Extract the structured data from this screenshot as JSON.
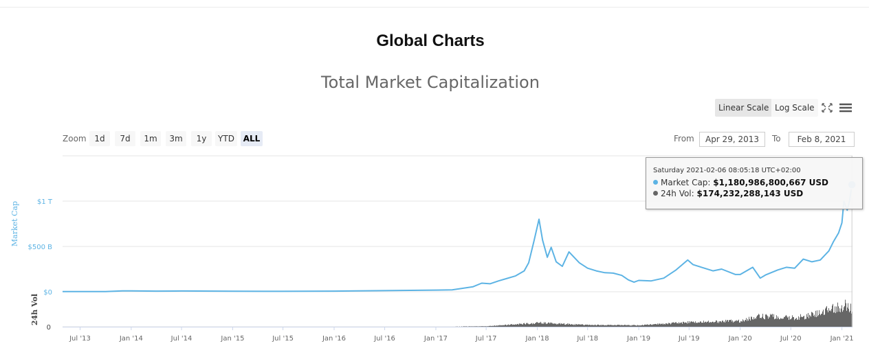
{
  "page": {
    "title": "Global Charts"
  },
  "toolbar": {
    "linear_label": "Linear Scale",
    "log_label": "Log Scale",
    "zoom_label": "Zoom",
    "zoom_options": [
      "1d",
      "7d",
      "1m",
      "3m",
      "1y",
      "YTD",
      "ALL"
    ],
    "zoom_active": "ALL",
    "from_label": "From",
    "from_value": "Apr 29, 2013",
    "to_label": "To",
    "to_value": "Feb 8, 2021"
  },
  "tooltip": {
    "date": "Saturday 2021-02-06 08:05:18 UTC+02:00",
    "market_cap_label": "Market Cap:",
    "market_cap_value": "$1,180,986,800,667 USD",
    "volume_label": "24h Vol:",
    "volume_value": "$174,232,288,143 USD"
  },
  "colors": {
    "market_cap": "#5cb3e4",
    "volume": "#666666"
  },
  "chart_data": {
    "type": "area",
    "title": "Total Market Capitalization",
    "ylabel": "Market Cap",
    "y2label": "24h Vol",
    "ytick_labels": [
      "$0",
      "$500 B",
      "$1 T"
    ],
    "y2tick_labels": [
      "0"
    ],
    "ylim": [
      0,
      1300
    ],
    "y_unit": "billion USD",
    "xtick_labels": [
      "Jul '13",
      "Jan '14",
      "Jul '14",
      "Jan '15",
      "Jul '15",
      "Jan '16",
      "Jul '16",
      "Jan '17",
      "Jul '17",
      "Jan '18",
      "Jul '18",
      "Jan '19",
      "Jul '19",
      "Jan '20",
      "Jul '20",
      "Jan '21"
    ],
    "grid": true,
    "series": [
      {
        "name": "Market Cap",
        "x": [
          "2013-04-29",
          "2013-07-01",
          "2013-10-01",
          "2013-12-01",
          "2014-01-01",
          "2014-04-01",
          "2014-07-01",
          "2015-01-01",
          "2015-07-01",
          "2016-01-01",
          "2016-07-01",
          "2017-01-01",
          "2017-03-01",
          "2017-05-15",
          "2017-06-15",
          "2017-07-15",
          "2017-08-15",
          "2017-09-15",
          "2017-10-15",
          "2017-11-15",
          "2017-12-01",
          "2017-12-20",
          "2018-01-07",
          "2018-01-20",
          "2018-02-06",
          "2018-02-20",
          "2018-03-10",
          "2018-04-01",
          "2018-04-25",
          "2018-06-01",
          "2018-07-01",
          "2018-08-01",
          "2018-09-01",
          "2018-10-01",
          "2018-11-01",
          "2018-11-25",
          "2018-12-15",
          "2019-01-01",
          "2019-02-15",
          "2019-04-01",
          "2019-05-15",
          "2019-06-26",
          "2019-07-15",
          "2019-08-15",
          "2019-09-25",
          "2019-10-26",
          "2019-12-15",
          "2020-01-01",
          "2020-02-15",
          "2020-03-13",
          "2020-04-01",
          "2020-05-15",
          "2020-06-15",
          "2020-07-15",
          "2020-08-15",
          "2020-09-15",
          "2020-10-15",
          "2020-11-15",
          "2020-12-01",
          "2020-12-20",
          "2021-01-01",
          "2021-01-08",
          "2021-01-20",
          "2021-01-28",
          "2021-02-06"
        ],
        "values": [
          1.5,
          1.2,
          1.8,
          10,
          10,
          7,
          8,
          5,
          4.5,
          7,
          12,
          18,
          21,
          55,
          95,
          88,
          120,
          148,
          175,
          230,
          320,
          560,
          800,
          570,
          380,
          490,
          330,
          280,
          440,
          320,
          260,
          230,
          210,
          205,
          180,
          130,
          105,
          125,
          120,
          150,
          240,
          350,
          300,
          270,
          230,
          250,
          190,
          190,
          270,
          150,
          185,
          240,
          270,
          260,
          360,
          330,
          350,
          450,
          550,
          650,
          760,
          1000,
          900,
          1000,
          1180.99
        ]
      },
      {
        "name": "24h Vol",
        "x": [
          "2013-04-29",
          "2016-07-01",
          "2017-01-01",
          "2017-07-01",
          "2018-01-07",
          "2018-07-01",
          "2019-01-01",
          "2019-06-26",
          "2020-01-01",
          "2020-03-13",
          "2020-07-01",
          "2020-09-01",
          "2021-01-11",
          "2021-02-06"
        ],
        "values": [
          0.1,
          0.4,
          0.8,
          5,
          40,
          18,
          15,
          45,
          60,
          110,
          90,
          110,
          220,
          174.23
        ]
      }
    ],
    "highlight": {
      "x": "2021-02-06",
      "value": 1180.99
    }
  }
}
